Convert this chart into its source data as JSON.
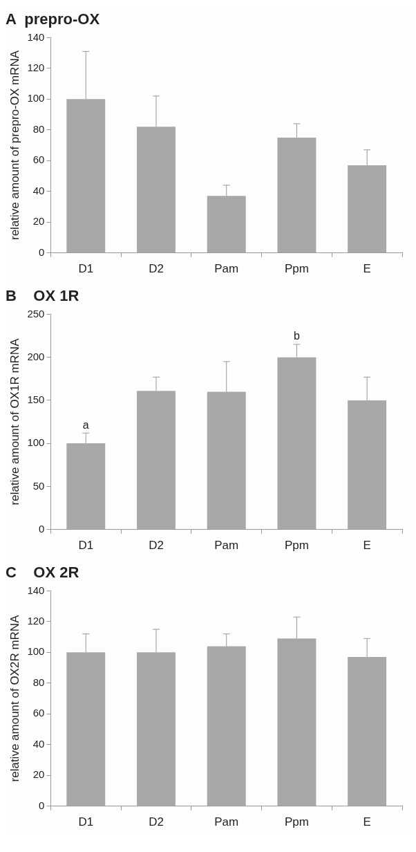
{
  "chart_data": [
    {
      "type": "bar",
      "title": "A  prepro-OX",
      "ylabel": "relative amount of prepro-OX mRNA",
      "categories": [
        "D1",
        "D2",
        "Pam",
        "Ppm",
        "E"
      ],
      "values": [
        100,
        82,
        37,
        75,
        57
      ],
      "errors": [
        [
          100,
          131
        ],
        [
          82,
          102
        ],
        [
          37,
          44
        ],
        [
          75,
          84
        ],
        [
          57,
          67
        ]
      ],
      "color": "#a7a8aa",
      "ylim": [
        0,
        140
      ],
      "yticks": [
        0,
        20,
        40,
        60,
        80,
        100,
        120,
        140
      ],
      "grid": false,
      "legend": false
    },
    {
      "type": "bar",
      "title": "B    OX 1R",
      "ylabel": "relative amount of OX1R mRNA",
      "categories": [
        "D1",
        "D2",
        "Pam",
        "Ppm",
        "E"
      ],
      "values": [
        100,
        161,
        160,
        200,
        150
      ],
      "errors": [
        [
          100,
          112
        ],
        [
          161,
          177
        ],
        [
          160,
          195
        ],
        [
          200,
          215
        ],
        [
          150,
          177
        ]
      ],
      "color": "#a7a8aa",
      "ylim": [
        0,
        250
      ],
      "yticks": [
        0,
        50,
        100,
        150,
        200,
        250
      ],
      "grid": false,
      "legend": false,
      "annotations": [
        {
          "text": "a",
          "x": "D1",
          "y": 112
        },
        {
          "text": "b",
          "x": "Ppm",
          "y": 215
        }
      ]
    },
    {
      "type": "bar",
      "title": "C    OX 2R",
      "ylabel": "relative amount of OX2R mRNA",
      "categories": [
        "D1",
        "D2",
        "Pam",
        "Ppm",
        "E"
      ],
      "values": [
        100,
        100,
        104,
        109,
        97
      ],
      "errors": [
        [
          100,
          112
        ],
        [
          100,
          115
        ],
        [
          104,
          112
        ],
        [
          109,
          123
        ],
        [
          97,
          109
        ]
      ],
      "color": "#a7a8aa",
      "ylim": [
        0,
        140
      ],
      "yticks": [
        0,
        20,
        40,
        60,
        80,
        100,
        120,
        140
      ],
      "grid": false,
      "legend": false
    }
  ]
}
